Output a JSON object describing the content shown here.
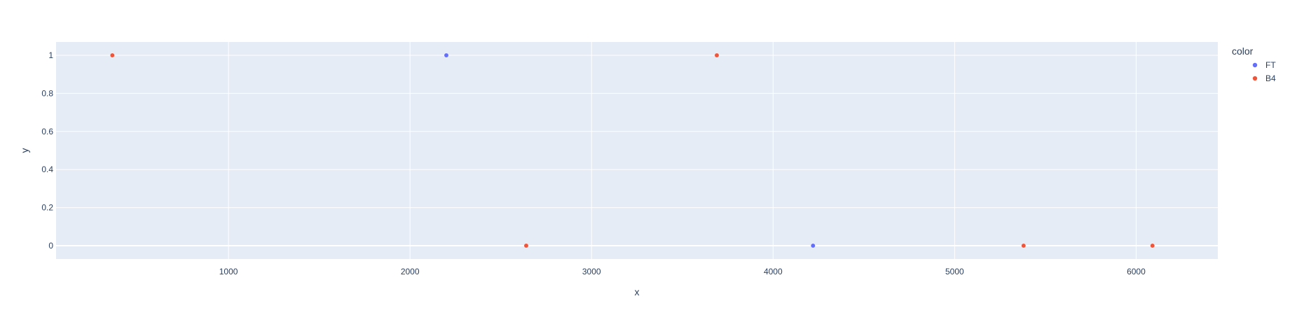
{
  "chart_data": {
    "type": "scatter",
    "xlabel": "x",
    "ylabel": "y",
    "xlim": [
      50,
      6450
    ],
    "ylim": [
      -0.07,
      1.07
    ],
    "x_ticks": [
      1000,
      2000,
      3000,
      4000,
      5000,
      6000
    ],
    "x_tick_labels": [
      "1000",
      "2000",
      "3000",
      "4000",
      "5000",
      "6000"
    ],
    "y_ticks": [
      0,
      0.2,
      0.4,
      0.6,
      0.8,
      1
    ],
    "y_tick_labels": [
      "0",
      "0.2",
      "0.4",
      "0.6",
      "0.8",
      "1"
    ],
    "grid": true,
    "legend": {
      "title": "color",
      "placement": "top-right"
    },
    "series": [
      {
        "name": "FT",
        "color": "#636efa",
        "points": [
          {
            "x": 2200,
            "y": 1
          },
          {
            "x": 4220,
            "y": 0
          }
        ]
      },
      {
        "name": "B4",
        "color": "#EF553B",
        "points": [
          {
            "x": 360,
            "y": 1
          },
          {
            "x": 2640,
            "y": 0
          },
          {
            "x": 3690,
            "y": 1
          },
          {
            "x": 5380,
            "y": 0
          },
          {
            "x": 6090,
            "y": 0
          }
        ]
      }
    ]
  },
  "colors": {
    "plot_background": "#E5ECF6",
    "grid": "#ffffff",
    "text": "#2a3f5f"
  }
}
